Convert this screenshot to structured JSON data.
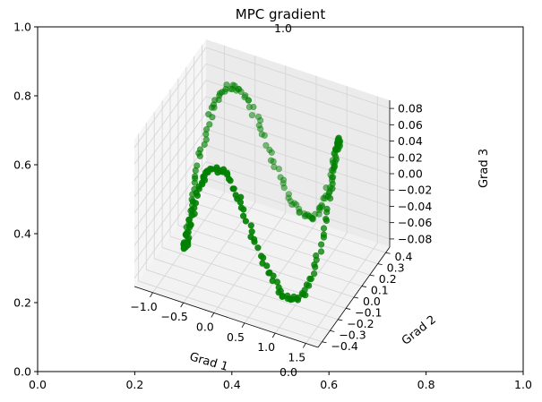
{
  "chart_data": {
    "type": "scatter",
    "title": "MPC gradient",
    "outer_axes": {
      "x_ticks": [
        "0.0",
        "0.2",
        "0.4",
        "0.6",
        "0.8",
        "1.0"
      ],
      "y_ticks": [
        "0.0",
        "0.2",
        "0.4",
        "0.6",
        "0.8",
        "1.0"
      ],
      "xlim": [
        0,
        1
      ],
      "ylim": [
        0,
        1
      ]
    },
    "axes3d": {
      "xlabel": "Grad 1",
      "ylabel": "Grad 2",
      "zlabel": "Grad 3",
      "x_ticks": [
        "−1.0",
        "−0.5",
        "0.0",
        "0.5",
        "1.0",
        "1.5"
      ],
      "x_tick_values": [
        -1.0,
        -0.5,
        0.0,
        0.5,
        1.0,
        1.5
      ],
      "y_ticks": [
        "−0.4",
        "−0.3",
        "−0.2",
        "−0.1",
        "0.0",
        "0.1",
        "0.2",
        "0.3",
        "0.4"
      ],
      "y_tick_values": [
        -0.4,
        -0.3,
        -0.2,
        -0.1,
        0.0,
        0.1,
        0.2,
        0.3,
        0.4
      ],
      "z_ticks": [
        "−0.08",
        "−0.06",
        "−0.04",
        "−0.02",
        "0.00",
        "0.02",
        "0.04",
        "0.06",
        "0.08"
      ],
      "z_tick_values": [
        -0.08,
        -0.06,
        -0.04,
        -0.02,
        0.0,
        0.02,
        0.04,
        0.06,
        0.08
      ],
      "xlim": [
        -1.3,
        1.7
      ],
      "ylim": [
        -0.45,
        0.45
      ],
      "zlim": [
        -0.09,
        0.09
      ],
      "grid": true,
      "point_color": "#008000",
      "point_count": 260
    },
    "stray_ticks": {
      "top": "1.0",
      "bottom": "0.0"
    }
  }
}
